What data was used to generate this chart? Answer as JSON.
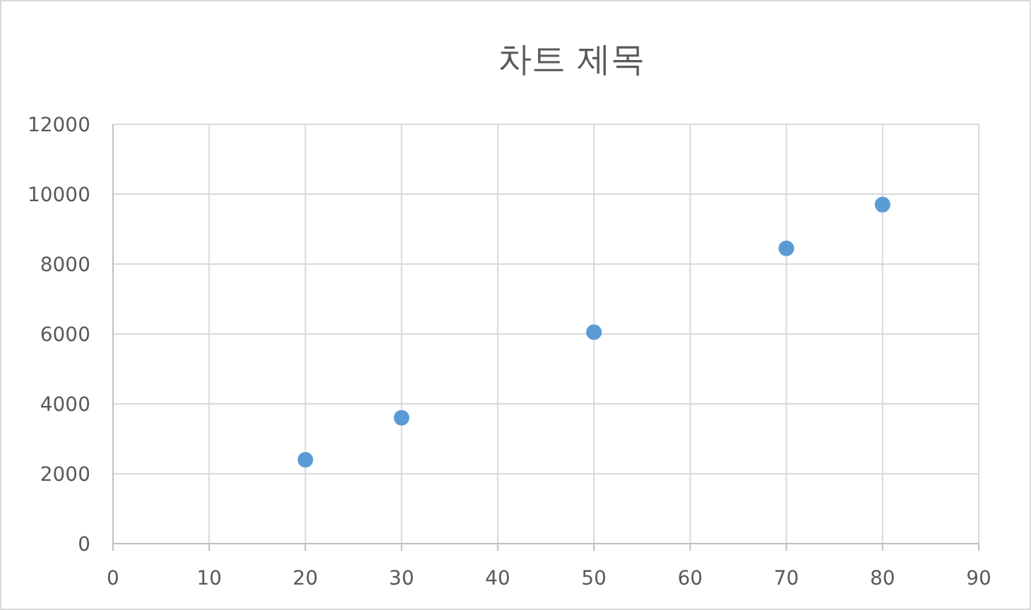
{
  "chart_data": {
    "type": "scatter",
    "title": "차트 제목",
    "x": [
      20,
      30,
      50,
      70,
      80
    ],
    "series": [
      {
        "color": "#5b9bd5",
        "values": [
          2400,
          3600,
          6050,
          8450,
          9700
        ]
      }
    ],
    "xlim": [
      0,
      90
    ],
    "xticks": [
      0,
      10,
      20,
      30,
      40,
      50,
      60,
      70,
      80,
      90
    ],
    "ylim": [
      0,
      12000
    ],
    "yticks": [
      0,
      2000,
      4000,
      6000,
      8000,
      10000,
      12000
    ],
    "grid": true,
    "marker": "circle"
  }
}
